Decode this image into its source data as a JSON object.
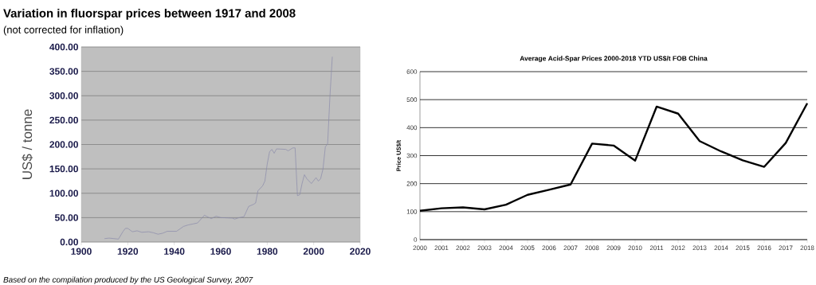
{
  "chart_data": [
    {
      "type": "line",
      "title": "Variation in fluorspar prices between 1917 and 2008",
      "subtitle": "(not corrected for inflation)",
      "ylabel": "US$ / tonne",
      "annotations": [
        "Based on the compilation produced by the US Geological Survey, 2007"
      ],
      "x": [
        1910,
        1912,
        1916,
        1918,
        1919,
        1920,
        1922,
        1924,
        1926,
        1929,
        1931,
        1933,
        1935,
        1937,
        1941,
        1944,
        1946,
        1948,
        1950,
        1953,
        1955,
        1956,
        1958,
        1960,
        1965,
        1966,
        1968,
        1970,
        1972,
        1974,
        1975,
        1976,
        1978,
        1979,
        1980,
        1981,
        1982,
        1983,
        1984,
        1988,
        1989,
        1991,
        1992,
        1993,
        1994,
        1995,
        1996,
        1997,
        1999,
        2001,
        2002,
        2003,
        2004,
        2005,
        2006,
        2007,
        2008
      ],
      "series": [
        {
          "color": "#8a8aaa",
          "values": [
            7,
            8,
            6,
            22,
            28,
            28,
            21,
            23,
            20,
            21,
            19,
            16,
            18,
            22,
            22,
            32,
            35,
            37,
            39,
            55,
            50,
            48,
            53,
            50,
            49,
            47,
            50,
            52,
            73,
            77,
            80,
            105,
            115,
            125,
            160,
            185,
            190,
            182,
            191,
            190,
            187,
            193,
            193,
            95,
            97,
            120,
            138,
            130,
            120,
            132,
            125,
            130,
            150,
            195,
            202,
            300,
            380
          ]
        }
      ],
      "xlim": [
        1900,
        2020
      ],
      "xticks": [
        1900,
        1920,
        1940,
        1960,
        1980,
        2000,
        2020
      ],
      "ylim": [
        0,
        400
      ],
      "yticks": [
        {
          "value": 0,
          "label": "0.00"
        },
        {
          "value": 50,
          "label": "50.00"
        },
        {
          "value": 100,
          "label": "100.00"
        },
        {
          "value": 150,
          "label": "150.00"
        },
        {
          "value": 200,
          "label": "200.00"
        },
        {
          "value": 250,
          "label": "250.00"
        },
        {
          "value": 300,
          "label": "300.00"
        },
        {
          "value": 350,
          "label": "350.00"
        },
        {
          "value": 400,
          "label": "400.00"
        }
      ],
      "grid": "y"
    },
    {
      "type": "line",
      "title": "Average Acid-Spar Prices 2000-2018 YTD US$/t FOB China",
      "ylabel": "Price US$/t",
      "categories": [
        "2000",
        "2001",
        "2002",
        "2003",
        "2004",
        "2005",
        "2006",
        "2007",
        "2008",
        "2009",
        "2010",
        "2011",
        "2012",
        "2013",
        "2014",
        "2015",
        "2016",
        "2017",
        "2018"
      ],
      "series": [
        {
          "color": "#000000",
          "values": [
            103,
            112,
            115,
            108,
            125,
            160,
            178,
            197,
            343,
            336,
            282,
            475,
            450,
            352,
            315,
            283,
            260,
            345,
            487
          ]
        }
      ],
      "ylim": [
        0,
        600
      ],
      "yticks": [
        0,
        100,
        200,
        300,
        400,
        500,
        600
      ],
      "grid": "y"
    }
  ]
}
